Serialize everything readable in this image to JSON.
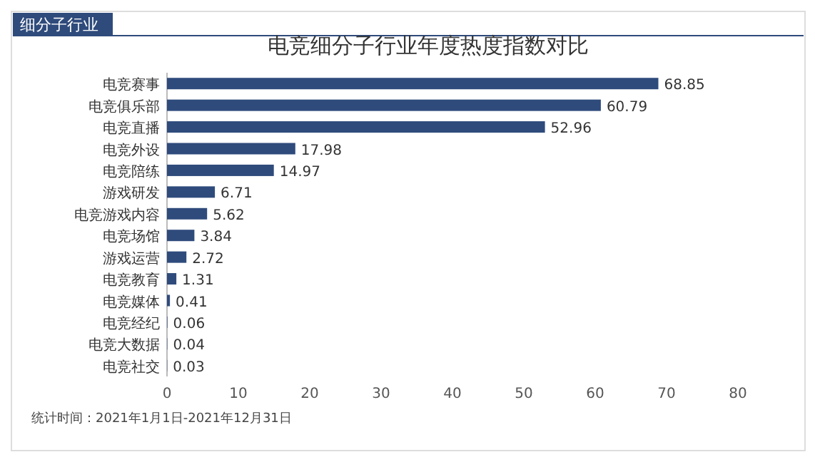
{
  "chart_data": {
    "type": "bar",
    "orientation": "horizontal",
    "title": "电竞细分子行业年度热度指数对比",
    "categories": [
      "电竞赛事",
      "电竞俱乐部",
      "电竞直播",
      "电竞外设",
      "电竞陪练",
      "游戏研发",
      "电竞游戏内容",
      "电竞场馆",
      "游戏运营",
      "电竞教育",
      "电竞媒体",
      "电竞经纪",
      "电竞大数据",
      "电竞社交"
    ],
    "values": [
      68.85,
      60.79,
      52.96,
      17.98,
      14.97,
      6.71,
      5.62,
      3.84,
      2.72,
      1.31,
      0.41,
      0.06,
      0.04,
      0.03
    ],
    "color": "#2f4b7c",
    "xlim": [
      0,
      80
    ],
    "xticks": [
      0,
      10,
      20,
      30,
      40,
      50,
      60,
      70,
      80
    ],
    "data_labels": true,
    "grid": false,
    "annotations": [
      "细分子行业",
      "统计时间：2021年1月1日-2021年12月31日"
    ]
  }
}
